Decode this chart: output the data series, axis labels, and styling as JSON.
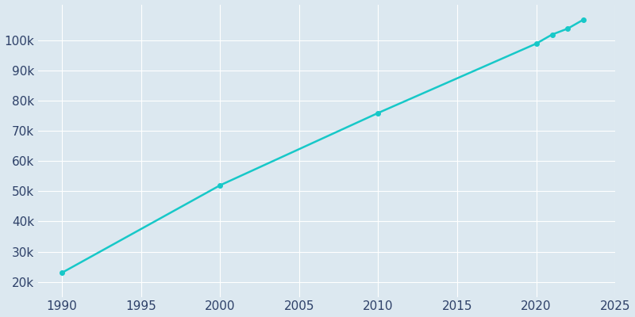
{
  "years": [
    1990,
    2000,
    2010,
    2020,
    2021,
    2022,
    2023
  ],
  "population": [
    23000,
    52000,
    76000,
    99000,
    102000,
    104000,
    107000
  ],
  "line_color": "#17c8c8",
  "marker_color": "#17c8c8",
  "fig_bg_color": "#dce8f0",
  "plot_bg_color": "#dce8f0",
  "grid_color": "#ffffff",
  "tick_color": "#2d4068",
  "xlim": [
    1988.5,
    2025
  ],
  "ylim": [
    15000,
    112000
  ],
  "xticks": [
    1990,
    1995,
    2000,
    2005,
    2010,
    2015,
    2020,
    2025
  ],
  "yticks": [
    20000,
    30000,
    40000,
    50000,
    60000,
    70000,
    80000,
    90000,
    100000
  ],
  "tick_fontsize": 11,
  "line_width": 1.8,
  "marker_size": 4
}
